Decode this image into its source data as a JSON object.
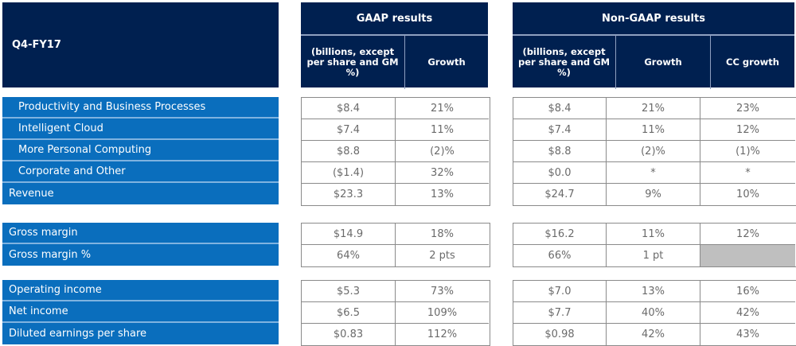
{
  "header": {
    "period": "Q4-FY17",
    "gaap": {
      "title": "GAAP results",
      "columns": [
        "(billions, except per share and GM %)",
        "Growth"
      ]
    },
    "non_gaap": {
      "title": "Non-GAAP results",
      "columns": [
        "(billions, except per share and GM %)",
        "Growth",
        "CC growth"
      ]
    }
  },
  "groups": [
    {
      "rows": [
        {
          "label": "Productivity and Business Processes",
          "indent": true,
          "gaap": [
            "$8.4",
            "21%"
          ],
          "non_gaap": [
            "$8.4",
            "21%",
            "23%"
          ]
        },
        {
          "label": "Intelligent Cloud",
          "indent": true,
          "gaap": [
            "$7.4",
            "11%"
          ],
          "non_gaap": [
            "$7.4",
            "11%",
            "12%"
          ]
        },
        {
          "label": "More Personal Computing",
          "indent": true,
          "gaap": [
            "$8.8",
            "(2)%"
          ],
          "non_gaap": [
            "$8.8",
            "(2)%",
            "(1)%"
          ]
        },
        {
          "label": "Corporate and Other",
          "indent": true,
          "gaap": [
            "($1.4)",
            "32%"
          ],
          "non_gaap": [
            "$0.0",
            "*",
            "*"
          ]
        },
        {
          "label": "Revenue",
          "indent": false,
          "gaap": [
            "$23.3",
            "13%"
          ],
          "non_gaap": [
            "$24.7",
            "9%",
            "10%"
          ]
        }
      ]
    },
    {
      "rows": [
        {
          "label": "Gross margin",
          "indent": false,
          "gaap": [
            "$14.9",
            "18%"
          ],
          "non_gaap": [
            "$16.2",
            "11%",
            "12%"
          ]
        },
        {
          "label": "Gross margin %",
          "indent": false,
          "gaap": [
            "64%",
            "2 pts"
          ],
          "non_gaap": [
            "66%",
            "1 pt",
            ""
          ]
        }
      ]
    },
    {
      "rows": [
        {
          "label": "Operating income",
          "indent": false,
          "gaap": [
            "$5.3",
            "73%"
          ],
          "non_gaap": [
            "$7.0",
            "13%",
            "16%"
          ]
        },
        {
          "label": "Net income",
          "indent": false,
          "gaap": [
            "$6.5",
            "109%"
          ],
          "non_gaap": [
            "$7.7",
            "40%",
            "42%"
          ]
        },
        {
          "label": "Diluted earnings per share",
          "indent": false,
          "gaap": [
            "$0.83",
            "112%"
          ],
          "non_gaap": [
            "$0.98",
            "42%",
            "43%"
          ]
        }
      ]
    }
  ],
  "colors": {
    "header_navy": "#002050",
    "label_blue": "#0a6ebd",
    "cell_text": "#6a6a6a",
    "empty_cell": "#bfbfbf"
  }
}
